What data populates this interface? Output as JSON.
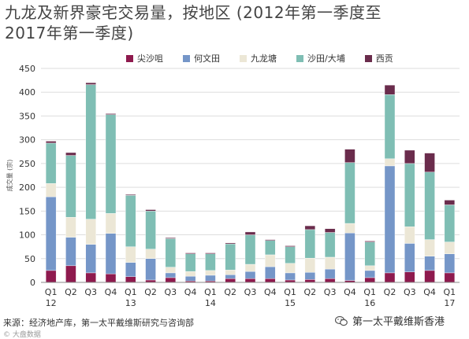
{
  "title": "九龙及新界豪宅交易量，按地区 (2012年第一季度至\n2017年第一季度)",
  "source_note": "来源：经济地产库，第一太平戴维斯研究与咨询部",
  "watermark_text": "第一太平戴维斯香港",
  "watermark_icon": "wechat-icon",
  "brand_small": "© 大盘数据",
  "chart_data": {
    "type": "bar",
    "stacked": true,
    "ylabel": "成交量 (宗)",
    "ylim": [
      0,
      450
    ],
    "yticks": [
      0,
      50,
      100,
      150,
      200,
      250,
      300,
      350,
      400,
      450
    ],
    "grid": true,
    "legend_position": "top",
    "categories": [
      [
        "Q1",
        "12"
      ],
      [
        "Q2",
        ""
      ],
      [
        "Q3",
        ""
      ],
      [
        "Q4",
        ""
      ],
      [
        "Q1",
        "13"
      ],
      [
        "Q2",
        ""
      ],
      [
        "Q3",
        ""
      ],
      [
        "Q4",
        ""
      ],
      [
        "Q1",
        "14"
      ],
      [
        "Q2",
        ""
      ],
      [
        "Q3",
        ""
      ],
      [
        "Q4",
        ""
      ],
      [
        "Q1",
        "15"
      ],
      [
        "Q2",
        ""
      ],
      [
        "Q3",
        ""
      ],
      [
        "Q4",
        ""
      ],
      [
        "Q1",
        "16"
      ],
      [
        "Q2",
        ""
      ],
      [
        "Q3",
        ""
      ],
      [
        "Q4",
        ""
      ],
      [
        "Q1",
        "17"
      ]
    ],
    "series": [
      {
        "name": "尖沙咀",
        "color": "#8e1a4e",
        "values": [
          25,
          35,
          20,
          18,
          12,
          5,
          10,
          3,
          3,
          8,
          8,
          8,
          5,
          6,
          8,
          4,
          10,
          20,
          22,
          25,
          20
        ]
      },
      {
        "name": "何文田",
        "color": "#7596c8",
        "values": [
          155,
          60,
          60,
          85,
          30,
          45,
          10,
          10,
          12,
          8,
          15,
          25,
          15,
          15,
          20,
          100,
          15,
          225,
          60,
          30,
          40
        ]
      },
      {
        "name": "九龙塘",
        "color": "#ece7d6",
        "values": [
          28,
          42,
          53,
          42,
          33,
          20,
          12,
          10,
          10,
          10,
          15,
          25,
          20,
          30,
          25,
          20,
          10,
          15,
          35,
          35,
          25
        ]
      },
      {
        "name": "沙田/大埔",
        "color": "#7fbeb4",
        "values": [
          85,
          130,
          283,
          208,
          108,
          80,
          60,
          37,
          35,
          55,
          62,
          30,
          35,
          60,
          52,
          128,
          50,
          135,
          133,
          142,
          78
        ]
      },
      {
        "name": "西贡",
        "color": "#6a2c4c",
        "values": [
          4,
          6,
          4,
          2,
          2,
          3,
          2,
          2,
          2,
          2,
          6,
          2,
          2,
          8,
          8,
          28,
          2,
          20,
          28,
          40,
          10
        ]
      }
    ]
  }
}
